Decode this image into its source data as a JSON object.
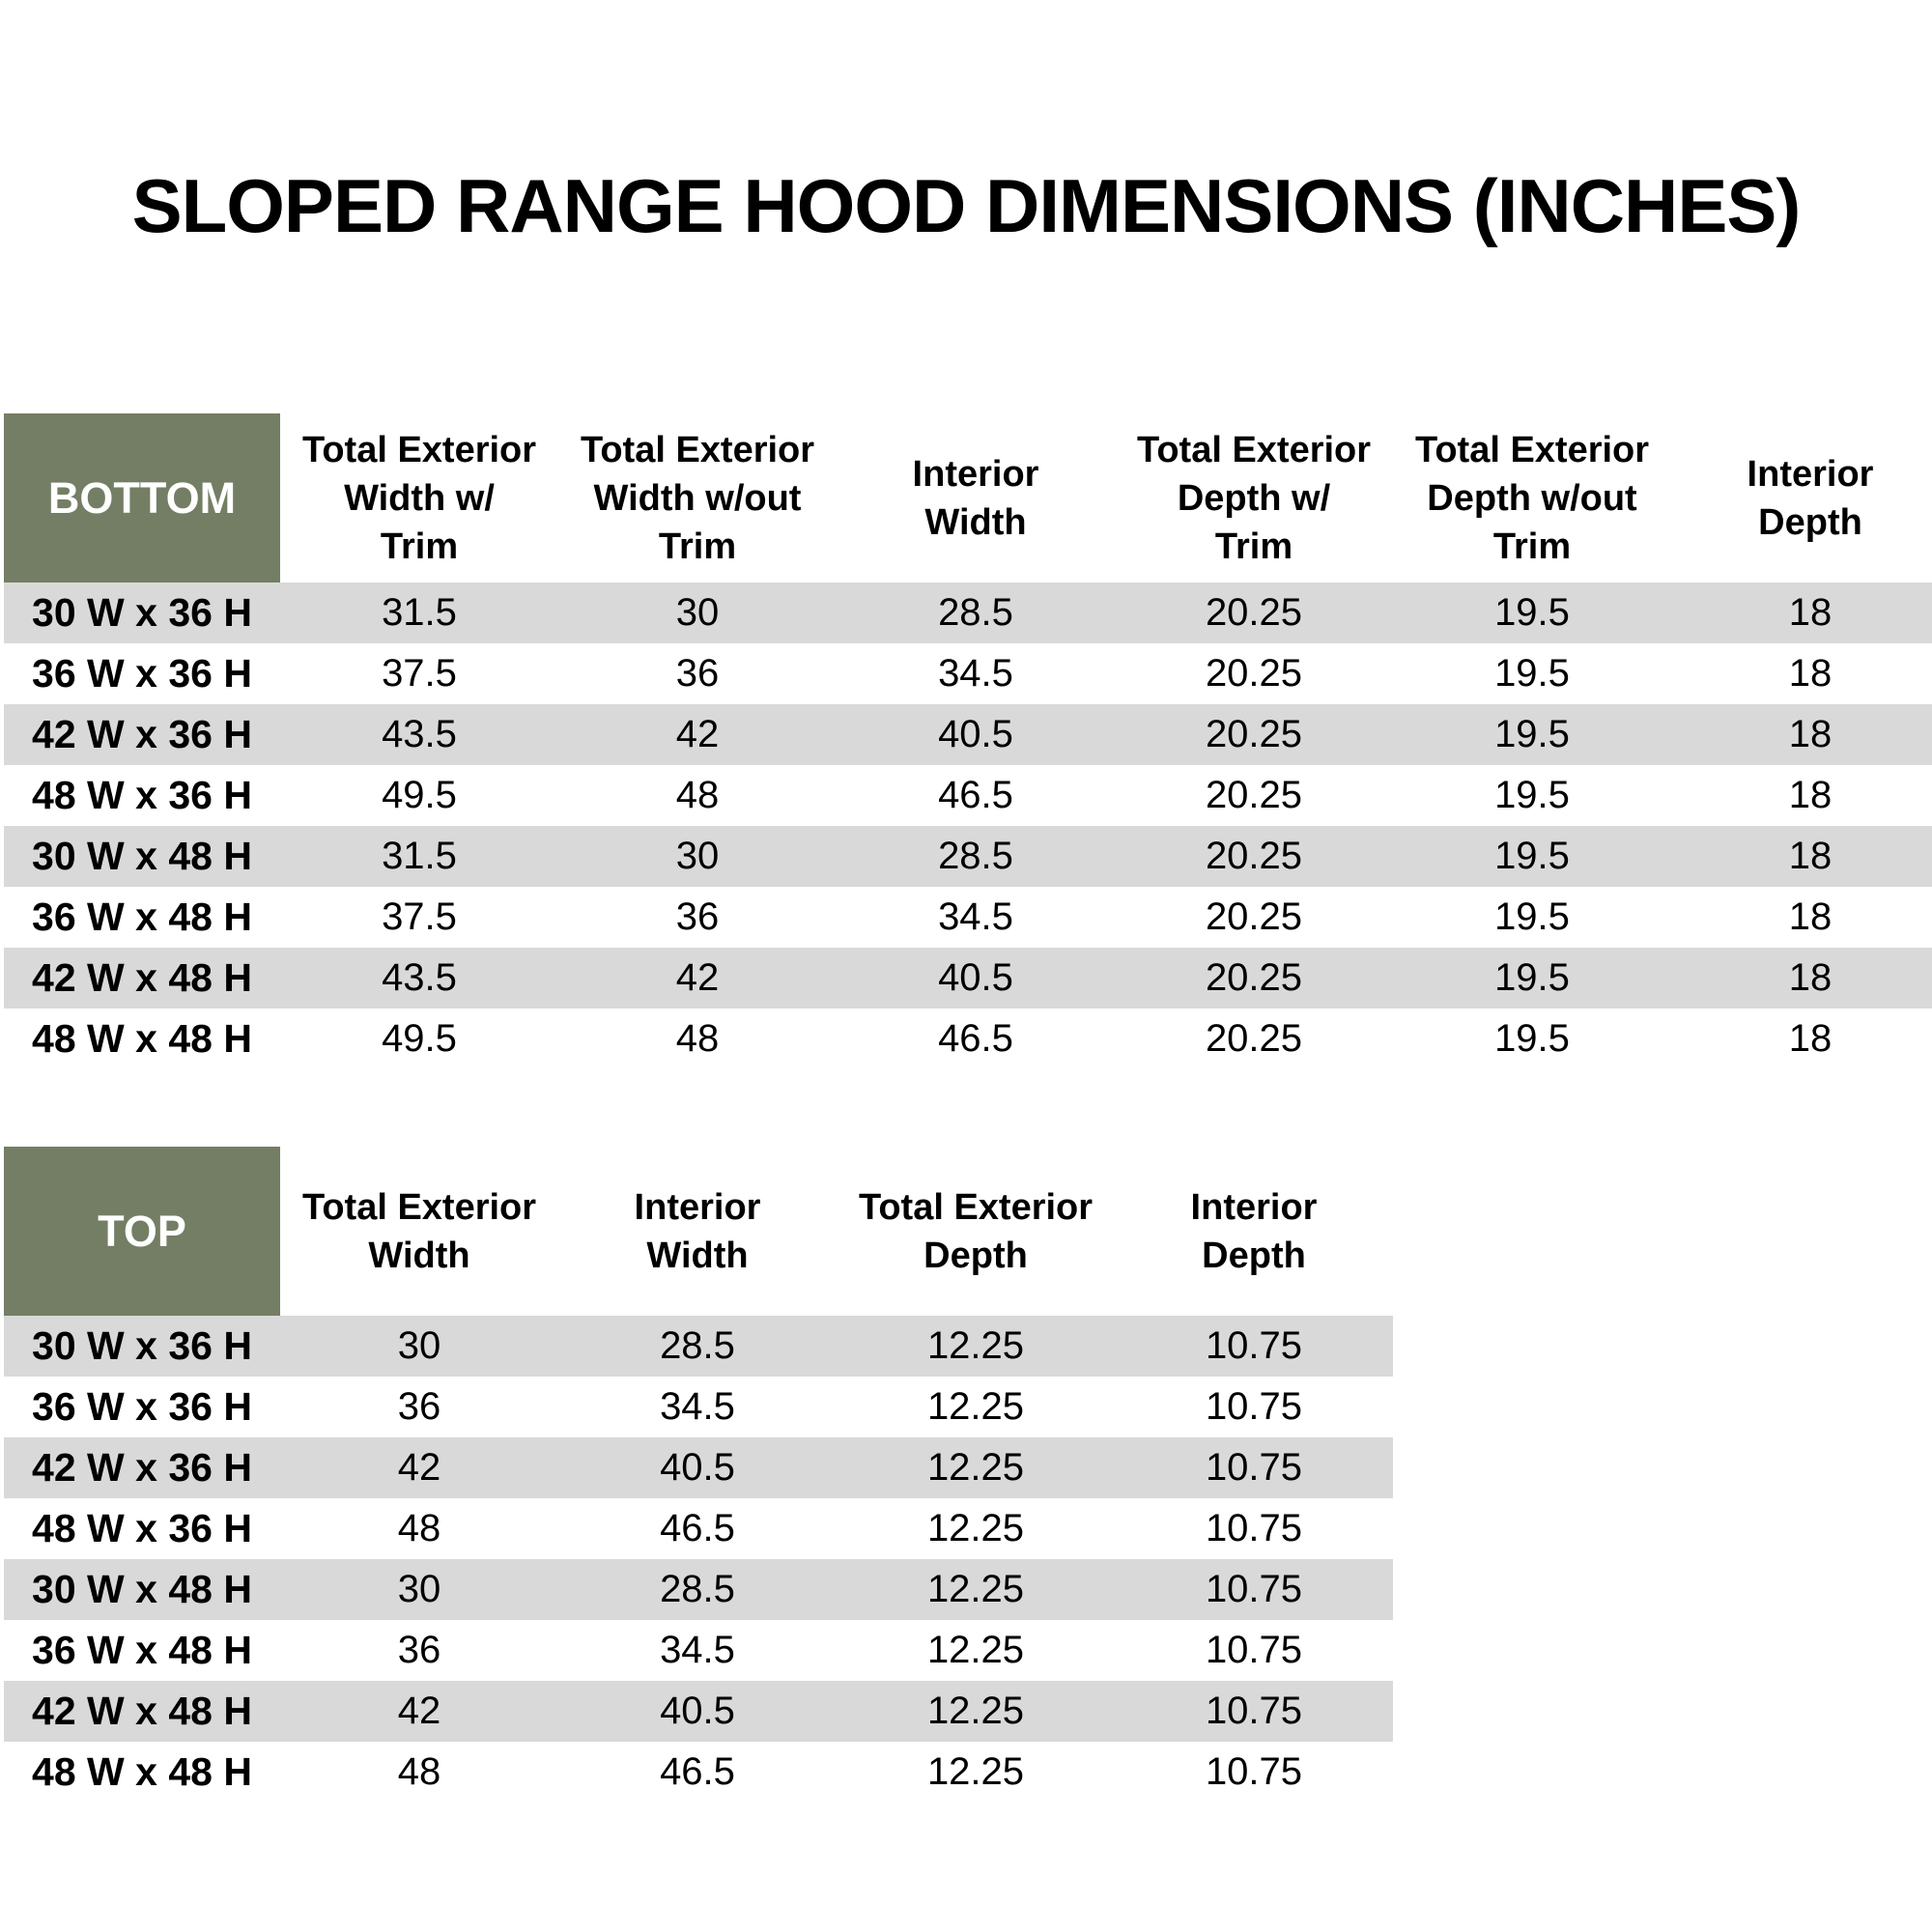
{
  "title": "SLOPED RANGE HOOD DIMENSIONS (INCHES)",
  "colors": {
    "header_green": "#747E64",
    "row_stripe_gray": "#D9D9D9",
    "header_text": "#FFFFFF",
    "body_text": "#000000",
    "background": "#FFFFFF"
  },
  "bottom_table": {
    "label": "BOTTOM",
    "columns": [
      "Total Exterior\nWidth w/\nTrim",
      "Total Exterior\nWidth w/out\nTrim",
      "Interior\nWidth",
      "Total Exterior\nDepth w/\nTrim",
      "Total Exterior\nDepth w/out\nTrim",
      "Interior\nDepth"
    ],
    "rows": [
      {
        "label": "30 W x 36 H",
        "values": [
          "31.5",
          "30",
          "28.5",
          "20.25",
          "19.5",
          "18"
        ]
      },
      {
        "label": "36 W x 36 H",
        "values": [
          "37.5",
          "36",
          "34.5",
          "20.25",
          "19.5",
          "18"
        ]
      },
      {
        "label": "42 W x 36 H",
        "values": [
          "43.5",
          "42",
          "40.5",
          "20.25",
          "19.5",
          "18"
        ]
      },
      {
        "label": "48 W x 36 H",
        "values": [
          "49.5",
          "48",
          "46.5",
          "20.25",
          "19.5",
          "18"
        ]
      },
      {
        "label": "30 W x 48 H",
        "values": [
          "31.5",
          "30",
          "28.5",
          "20.25",
          "19.5",
          "18"
        ]
      },
      {
        "label": "36 W x 48 H",
        "values": [
          "37.5",
          "36",
          "34.5",
          "20.25",
          "19.5",
          "18"
        ]
      },
      {
        "label": "42 W x 48 H",
        "values": [
          "43.5",
          "42",
          "40.5",
          "20.25",
          "19.5",
          "18"
        ]
      },
      {
        "label": "48 W x 48 H",
        "values": [
          "49.5",
          "48",
          "46.5",
          "20.25",
          "19.5",
          "18"
        ]
      }
    ]
  },
  "top_table": {
    "label": "TOP",
    "columns": [
      "Total Exterior\nWidth",
      "Interior\nWidth",
      "Total Exterior\nDepth",
      "Interior\nDepth"
    ],
    "rows": [
      {
        "label": "30 W x 36 H",
        "values": [
          "30",
          "28.5",
          "12.25",
          "10.75"
        ]
      },
      {
        "label": "36 W x 36 H",
        "values": [
          "36",
          "34.5",
          "12.25",
          "10.75"
        ]
      },
      {
        "label": "42 W x 36 H",
        "values": [
          "42",
          "40.5",
          "12.25",
          "10.75"
        ]
      },
      {
        "label": "48 W x 36 H",
        "values": [
          "48",
          "46.5",
          "12.25",
          "10.75"
        ]
      },
      {
        "label": "30 W x 48 H",
        "values": [
          "30",
          "28.5",
          "12.25",
          "10.75"
        ]
      },
      {
        "label": "36 W x 48 H",
        "values": [
          "36",
          "34.5",
          "12.25",
          "10.75"
        ]
      },
      {
        "label": "42 W x 48 H",
        "values": [
          "42",
          "40.5",
          "12.25",
          "10.75"
        ]
      },
      {
        "label": "48 W x 48 H",
        "values": [
          "48",
          "46.5",
          "12.25",
          "10.75"
        ]
      }
    ]
  }
}
